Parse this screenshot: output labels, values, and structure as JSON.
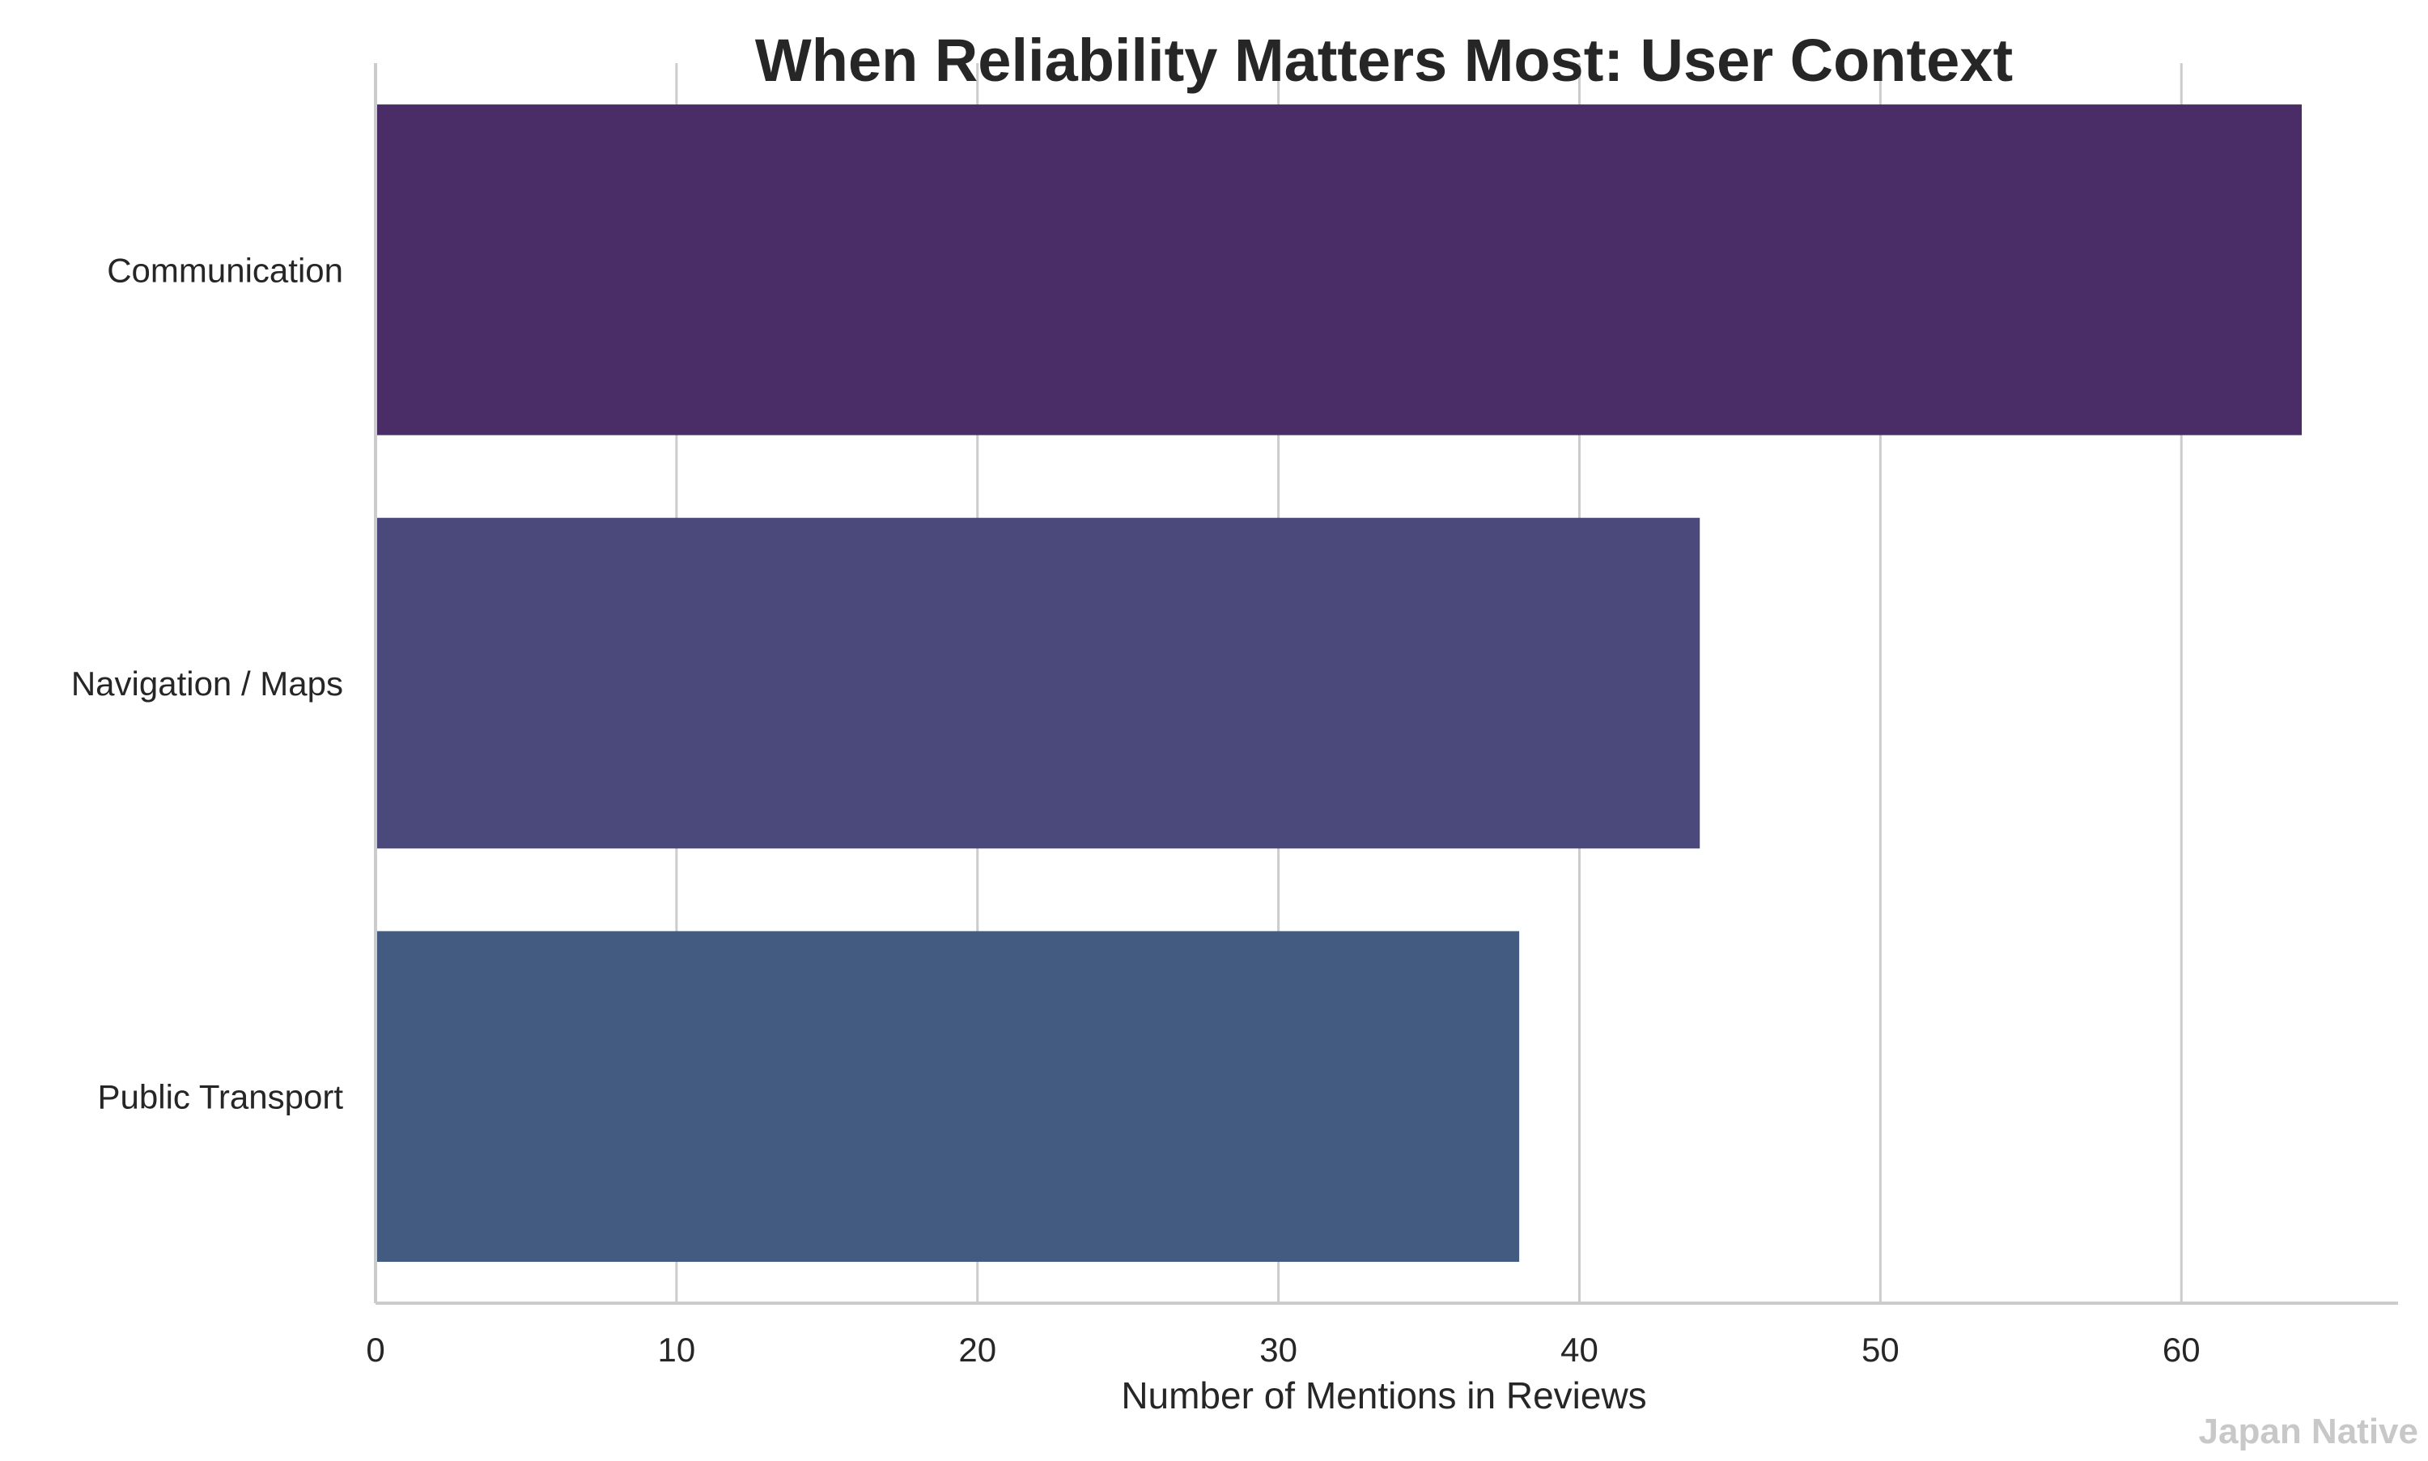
{
  "chart_data": {
    "type": "bar",
    "orientation": "horizontal",
    "title": "When Reliability Matters Most: User Context",
    "xlabel": "Number of Mentions in Reviews",
    "ylabel": "",
    "categories": [
      "Communication",
      "Navigation / Maps",
      "Public Transport"
    ],
    "values": [
      64,
      44,
      38
    ],
    "xlim": [
      0,
      67.2
    ],
    "xticks": [
      0,
      10,
      20,
      30,
      40,
      50,
      60
    ],
    "grid": "vertical",
    "legend": "none",
    "bar_colors": [
      "#4a2c66",
      "#4b487b",
      "#435b80"
    ]
  },
  "watermark": "Japan Native",
  "colors": {
    "title": "#262626",
    "text": "#262626",
    "grid": "#cccccc",
    "axis": "#cccccc",
    "watermark": "#c8c8c8",
    "background": "#ffffff"
  }
}
